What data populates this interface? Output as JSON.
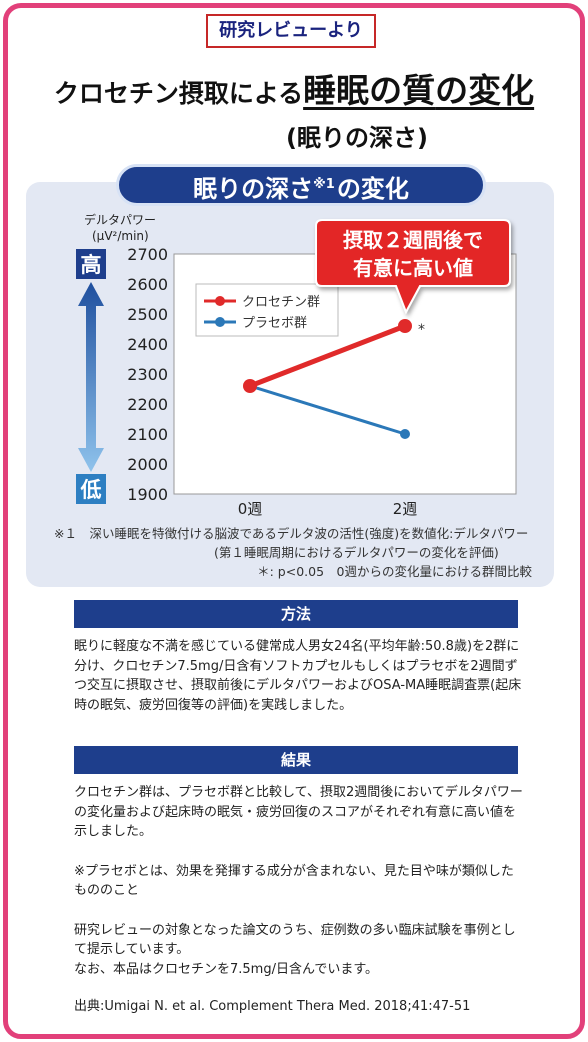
{
  "header": {
    "tag": "研究レビューより",
    "title_prefix": "クロセチン摂取による",
    "title_emph": "睡眠の質",
    "title_suffix": "の変化",
    "subtitle": "(眠りの深さ)"
  },
  "panel": {
    "pill_title_main": "眠りの深さ",
    "pill_title_note": "※1",
    "pill_title_tail": "の変化",
    "axis_label_line1": "デルタパワー",
    "axis_label_line2": "(μV²/min)",
    "high_label": "高",
    "low_label": "低",
    "callout_line1": "摂取２週間後で",
    "callout_line2": "有意に高い値",
    "significance_mark": "*",
    "legend_crocetin": "クロセチン群",
    "legend_placebo": "プラセボ群"
  },
  "chart_data": {
    "type": "line",
    "categories": [
      "0週",
      "2週"
    ],
    "series": [
      {
        "name": "クロセチン群",
        "values": [
          2260,
          2460
        ],
        "color": "#e02a2a"
      },
      {
        "name": "プラセボ群",
        "values": [
          2260,
          2100
        ],
        "color": "#2b78b8"
      }
    ],
    "ylabel": "デルタパワー (μV²/min)",
    "ylim": [
      1900,
      2700
    ],
    "yticks": [
      "2700",
      "2600",
      "2500",
      "2400",
      "2300",
      "2200",
      "2100",
      "2000",
      "1900"
    ],
    "grid": false,
    "legend_position": "top-left"
  },
  "notes": {
    "line1": "※１　深い睡眠を特徴付ける脳波であるデルタ波の活性(強度)を数値化:デルタパワー",
    "line2": "(第１睡眠周期におけるデルタパワーの変化を評価)",
    "line3": "＊: p<0.05　0週からの変化量における群間比較"
  },
  "method": {
    "heading": "方法",
    "body": "眠りに軽度な不満を感じている健常成人男女24名(平均年齢:50.8歳)を2群に分け、クロセチン7.5mg/日含有ソフトカプセルもしくはプラセボを2週間ずつ交互に摂取させ、摂取前後にデルタパワーおよびOSA-MA睡眠調査票(起床時の眠気、疲労回復等の評価)を実践しました。"
  },
  "result": {
    "heading": "結果",
    "body": "クロセチン群は、プラセボ群と比較して、摂取2週間後においてデルタパワーの変化量および起床時の眠気・疲労回復のスコアがそれぞれ有意に高い値を示しました。",
    "placebo_note": "※プラセボとは、効果を発揮する成分が含まれない、見た目や味が類似したもののこと",
    "review_note1": "研究レビューの対象となった論文のうち、症例数の多い臨床試験を事例として提示しています。",
    "review_note2": "なお、本品はクロセチンを7.5mg/日含んでいます。",
    "source": "出典:Umigai N. et al. Complement Thera Med. 2018;41:47-51"
  }
}
